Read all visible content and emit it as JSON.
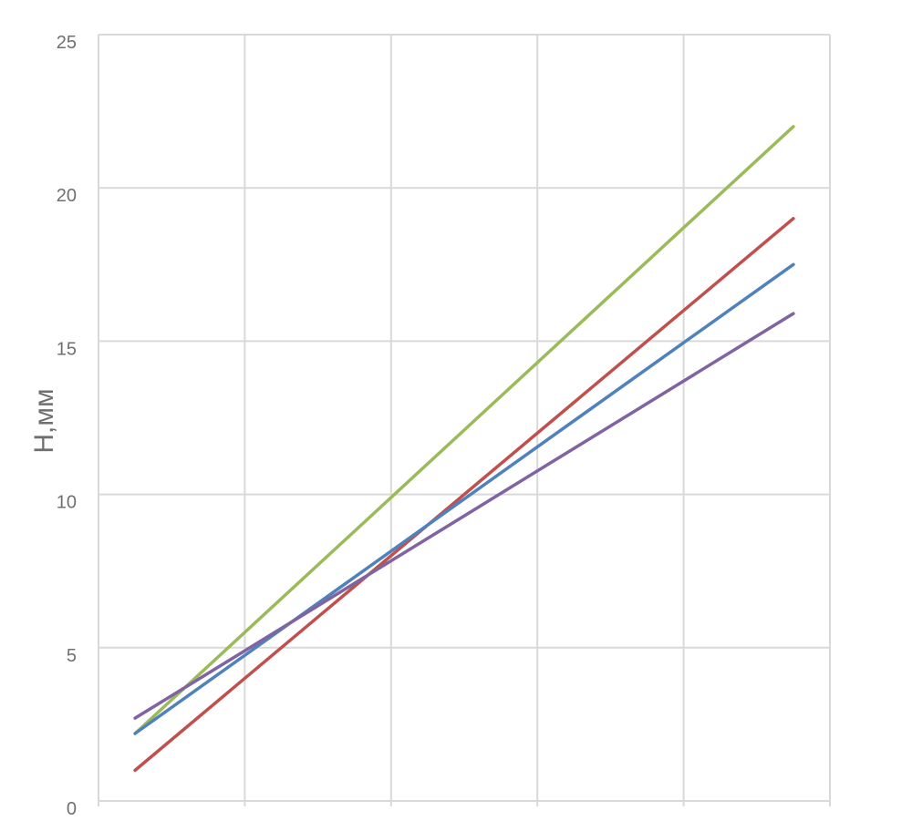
{
  "chart_data": {
    "type": "line",
    "title": "",
    "xlabel": "",
    "ylabel": "H,мм",
    "ylim": [
      0,
      25
    ],
    "yticks": [
      0,
      5,
      10,
      15,
      20,
      25
    ],
    "x_categories": 5,
    "grid": true,
    "legend": "none",
    "series": [
      {
        "color": "#9bbb59",
        "x": [
          0.25,
          4.75
        ],
        "values": [
          2.2,
          22.0
        ]
      },
      {
        "color": "#c0504d",
        "x": [
          0.25,
          4.75
        ],
        "values": [
          1.0,
          19.0
        ]
      },
      {
        "color": "#4f81bd",
        "x": [
          0.25,
          4.75
        ],
        "values": [
          2.2,
          17.5
        ]
      },
      {
        "color": "#8064a2",
        "x": [
          0.25,
          4.75
        ],
        "values": [
          2.7,
          15.9
        ]
      }
    ]
  }
}
